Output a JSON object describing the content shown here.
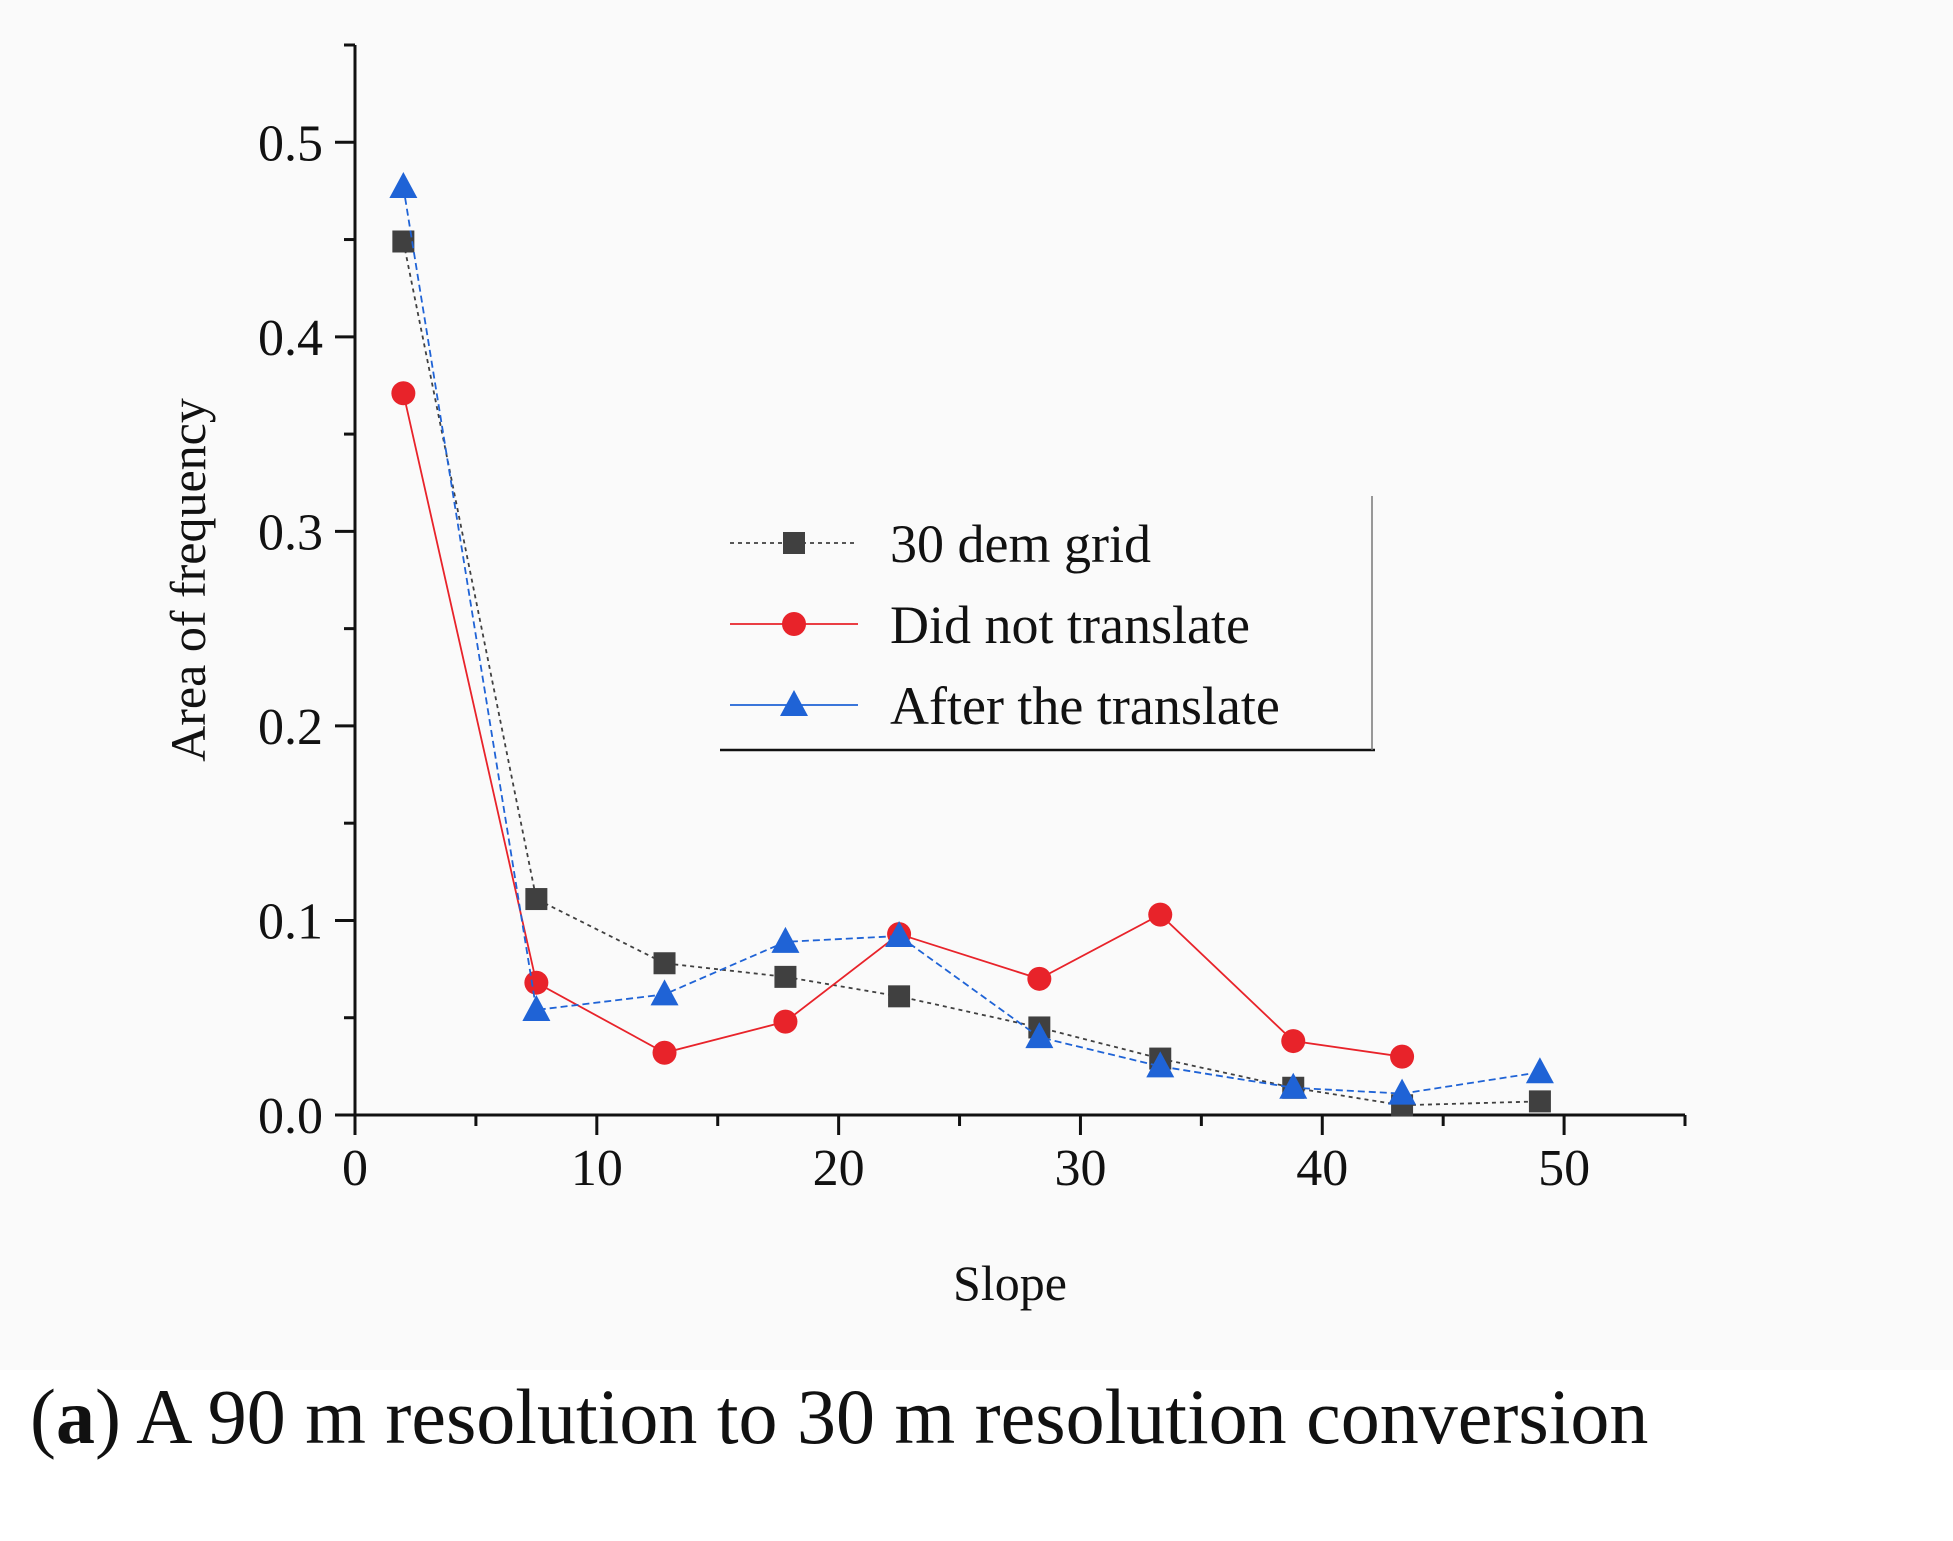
{
  "chart_data": {
    "type": "line",
    "title": "",
    "xlabel": "Slope",
    "ylabel": "Area of frequency",
    "xlim": [
      0,
      55
    ],
    "ylim": [
      0,
      0.55
    ],
    "xticks": [
      "0",
      "10",
      "20",
      "30",
      "40",
      "50"
    ],
    "yticks": [
      "0.0",
      "0.1",
      "0.2",
      "0.3",
      "0.4",
      "0.5"
    ],
    "legend_position": "center",
    "series": [
      {
        "name": "30 dem grid",
        "marker": "square",
        "color": "#404040",
        "x": [
          2,
          7.5,
          12.8,
          17.8,
          22.5,
          28.3,
          33.3,
          38.8,
          43.3,
          49
        ],
        "values": [
          0.449,
          0.111,
          0.078,
          0.071,
          0.061,
          0.045,
          0.029,
          0.014,
          0.005,
          0.007
        ]
      },
      {
        "name": "Did not translate",
        "marker": "circle",
        "color": "#e8232a",
        "x": [
          2,
          7.5,
          12.8,
          17.8,
          22.5,
          28.3,
          33.3,
          38.8,
          43.3
        ],
        "values": [
          0.371,
          0.068,
          0.032,
          0.048,
          0.093,
          0.07,
          0.103,
          0.038,
          0.03
        ]
      },
      {
        "name": "After the translate",
        "marker": "triangle",
        "color": "#1f63d6",
        "x": [
          2,
          7.5,
          12.8,
          17.8,
          22.5,
          28.3,
          33.3,
          38.8,
          43.3,
          49
        ],
        "values": [
          0.477,
          0.054,
          0.062,
          0.089,
          0.092,
          0.04,
          0.025,
          0.014,
          0.011,
          0.022
        ]
      }
    ]
  },
  "caption": {
    "label": "a",
    "text": " A 90 m resolution to 30 m resolution conversion"
  }
}
